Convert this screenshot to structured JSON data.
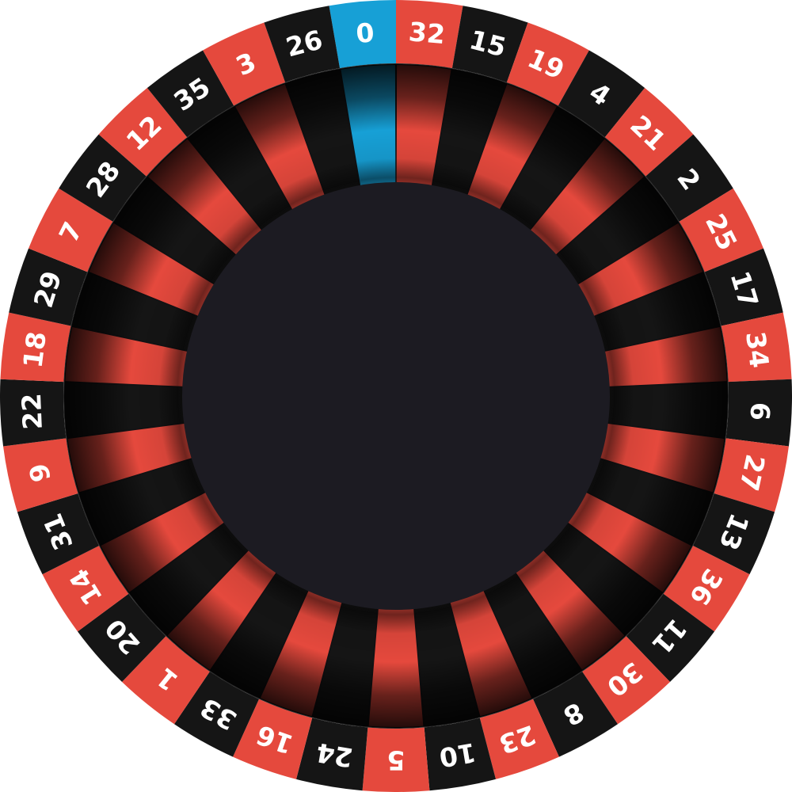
{
  "wheel": {
    "type": "european-roulette",
    "colors": {
      "red": "#e5493d",
      "black": "#151515",
      "green_zero": "#17a0d6",
      "number_text": "#ffffff",
      "hub": "#1c1b22",
      "rim_dark": "#121214"
    },
    "pockets": [
      {
        "number": "0",
        "color": "green"
      },
      {
        "number": "32",
        "color": "red"
      },
      {
        "number": "15",
        "color": "black"
      },
      {
        "number": "19",
        "color": "red"
      },
      {
        "number": "4",
        "color": "black"
      },
      {
        "number": "21",
        "color": "red"
      },
      {
        "number": "2",
        "color": "black"
      },
      {
        "number": "25",
        "color": "red"
      },
      {
        "number": "17",
        "color": "black"
      },
      {
        "number": "34",
        "color": "red"
      },
      {
        "number": "6",
        "color": "black"
      },
      {
        "number": "27",
        "color": "red"
      },
      {
        "number": "13",
        "color": "black"
      },
      {
        "number": "36",
        "color": "red"
      },
      {
        "number": "11",
        "color": "black"
      },
      {
        "number": "30",
        "color": "red"
      },
      {
        "number": "8",
        "color": "black"
      },
      {
        "number": "23",
        "color": "red"
      },
      {
        "number": "10",
        "color": "black"
      },
      {
        "number": "5",
        "color": "red"
      },
      {
        "number": "24",
        "color": "black"
      },
      {
        "number": "16",
        "color": "red"
      },
      {
        "number": "33",
        "color": "black"
      },
      {
        "number": "1",
        "color": "red"
      },
      {
        "number": "20",
        "color": "black"
      },
      {
        "number": "14",
        "color": "red"
      },
      {
        "number": "31",
        "color": "black"
      },
      {
        "number": "9",
        "color": "red"
      },
      {
        "number": "22",
        "color": "black"
      },
      {
        "number": "18",
        "color": "red"
      },
      {
        "number": "29",
        "color": "black"
      },
      {
        "number": "7",
        "color": "red"
      },
      {
        "number": "28",
        "color": "black"
      },
      {
        "number": "12",
        "color": "red"
      },
      {
        "number": "35",
        "color": "black"
      },
      {
        "number": "3",
        "color": "red"
      },
      {
        "number": "26",
        "color": "black"
      }
    ]
  }
}
